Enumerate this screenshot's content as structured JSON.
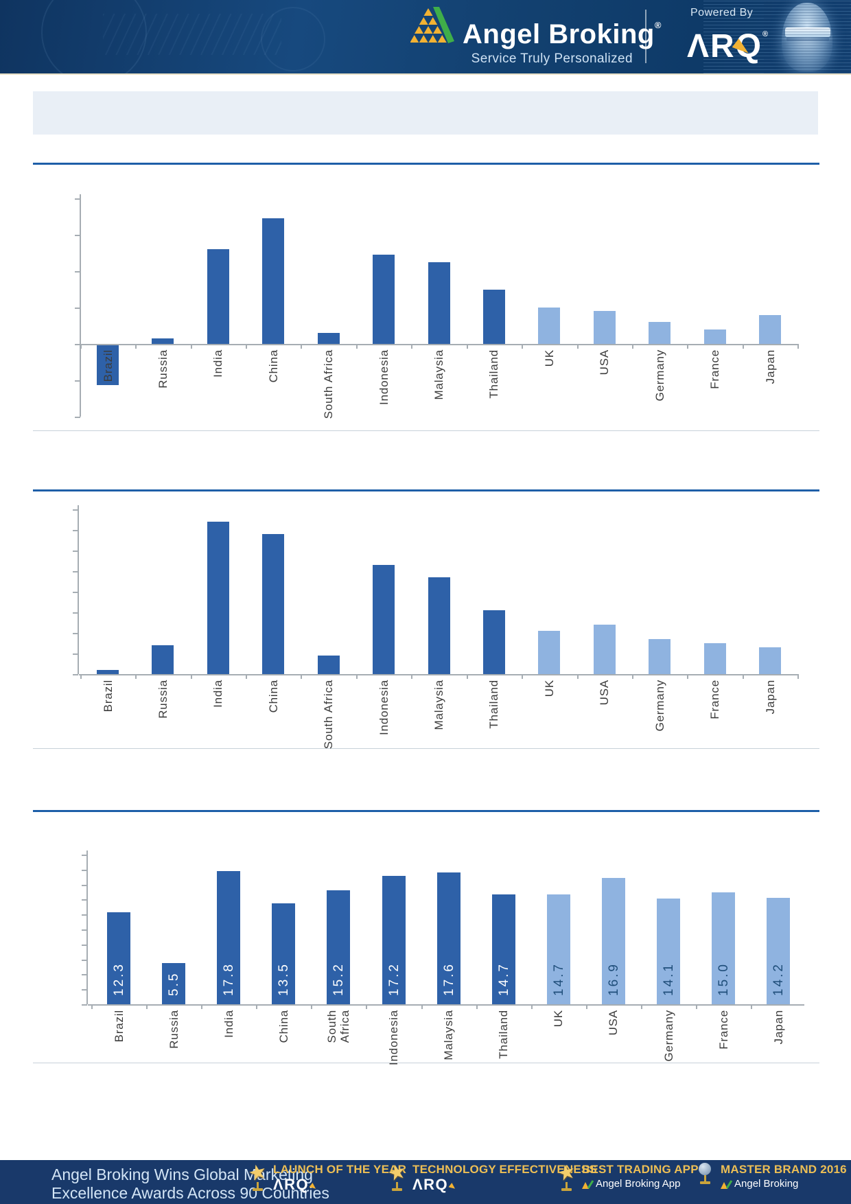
{
  "header": {
    "brand": "Angel Broking",
    "brand_reg": "®",
    "tagline": "Service Truly Personalized",
    "powered_by": "Powered By",
    "arq_logo": "ΛRQ",
    "arq_reg": "®"
  },
  "title_box": {
    "text": ""
  },
  "colors": {
    "bar_dark": "#2e61a8",
    "bar_light": "#8fb3e0",
    "value_on_dark": "#ffffff",
    "value_on_light": "#1f4e7a",
    "section_rule": "#1e5fa8",
    "axis": "#a6adb3",
    "header_navy": "#12406f",
    "footer_navy": "#19396a",
    "gold": "#f2b233",
    "green": "#3fae49",
    "title_box_bg": "#e9eff6"
  },
  "chart_data": [
    {
      "type": "bar",
      "title": "",
      "categories": [
        "Brazil",
        "Russia",
        "India",
        "China",
        "South Africa",
        "Indonesia",
        "Malaysia",
        "Thailand",
        "UK",
        "USA",
        "Germany",
        "France",
        "Japan"
      ],
      "values": [
        -1.1,
        0.15,
        2.6,
        3.45,
        0.3,
        2.45,
        2.25,
        1.5,
        1.0,
        0.9,
        0.6,
        0.4,
        0.8
      ],
      "ylim": [
        -2,
        4
      ],
      "tick_step": 1,
      "dark_count": 8,
      "value_labels_shown": false,
      "axis_numbers_shown": false,
      "grid": false,
      "legend": "none",
      "xlabel": "",
      "ylabel": ""
    },
    {
      "type": "bar",
      "title": "",
      "categories": [
        "Brazil",
        "Russia",
        "India",
        "China",
        "South Africa",
        "Indonesia",
        "Malaysia",
        "Thailand",
        "UK",
        "USA",
        "Germany",
        "France",
        "Japan"
      ],
      "values": [
        0.2,
        1.4,
        7.4,
        6.8,
        0.9,
        5.3,
        4.7,
        3.1,
        2.1,
        2.4,
        1.7,
        1.5,
        1.3
      ],
      "ylim": [
        0,
        8
      ],
      "tick_step": 1,
      "dark_count": 8,
      "value_labels_shown": false,
      "axis_numbers_shown": false,
      "grid": false,
      "legend": "none",
      "xlabel": "",
      "ylabel": ""
    },
    {
      "type": "bar",
      "title": "",
      "categories": [
        "Brazil",
        "Russia",
        "India",
        "China",
        "South Africa",
        "Indonesia",
        "Malaysia",
        "Thailand",
        "UK",
        "USA",
        "Germany",
        "France",
        "Japan"
      ],
      "values": [
        12.3,
        5.5,
        17.8,
        13.5,
        15.2,
        17.2,
        17.6,
        14.7,
        14.7,
        16.9,
        14.1,
        15.0,
        14.2
      ],
      "value_label_texts": [
        "12.3",
        "5.5",
        "17.8",
        "13.5",
        "15.2",
        "17.2",
        "17.6",
        "14.7",
        "14.7",
        "16.9",
        "14.1",
        "15.0",
        "14.2"
      ],
      "ylim": [
        0,
        20
      ],
      "tick_step": 2,
      "dark_count": 8,
      "value_labels_shown": true,
      "axis_numbers_shown": false,
      "grid": false,
      "legend": "none",
      "xlabel": "",
      "ylabel": ""
    }
  ],
  "footer": {
    "message_line1": "Angel Broking Wins Global Marketing",
    "message_line2": "Excellence Awards Across 90 Countries",
    "awards": [
      {
        "title": "LAUNCH OF THE YEAR",
        "subtitle": "ΛRQ",
        "icon": "star-trophy",
        "has_mini_logo": false
      },
      {
        "title": "TECHNOLOGY EFFECTIVENESS",
        "subtitle": "ΛRQ",
        "icon": "star-trophy",
        "has_mini_logo": false
      },
      {
        "title": "BEST TRADING APP",
        "subtitle": "Angel Broking App",
        "icon": "star-trophy",
        "has_mini_logo": true
      },
      {
        "title": "MASTER BRAND 2016",
        "subtitle": "Angel Broking",
        "icon": "globe-trophy",
        "has_mini_logo": true
      }
    ]
  }
}
